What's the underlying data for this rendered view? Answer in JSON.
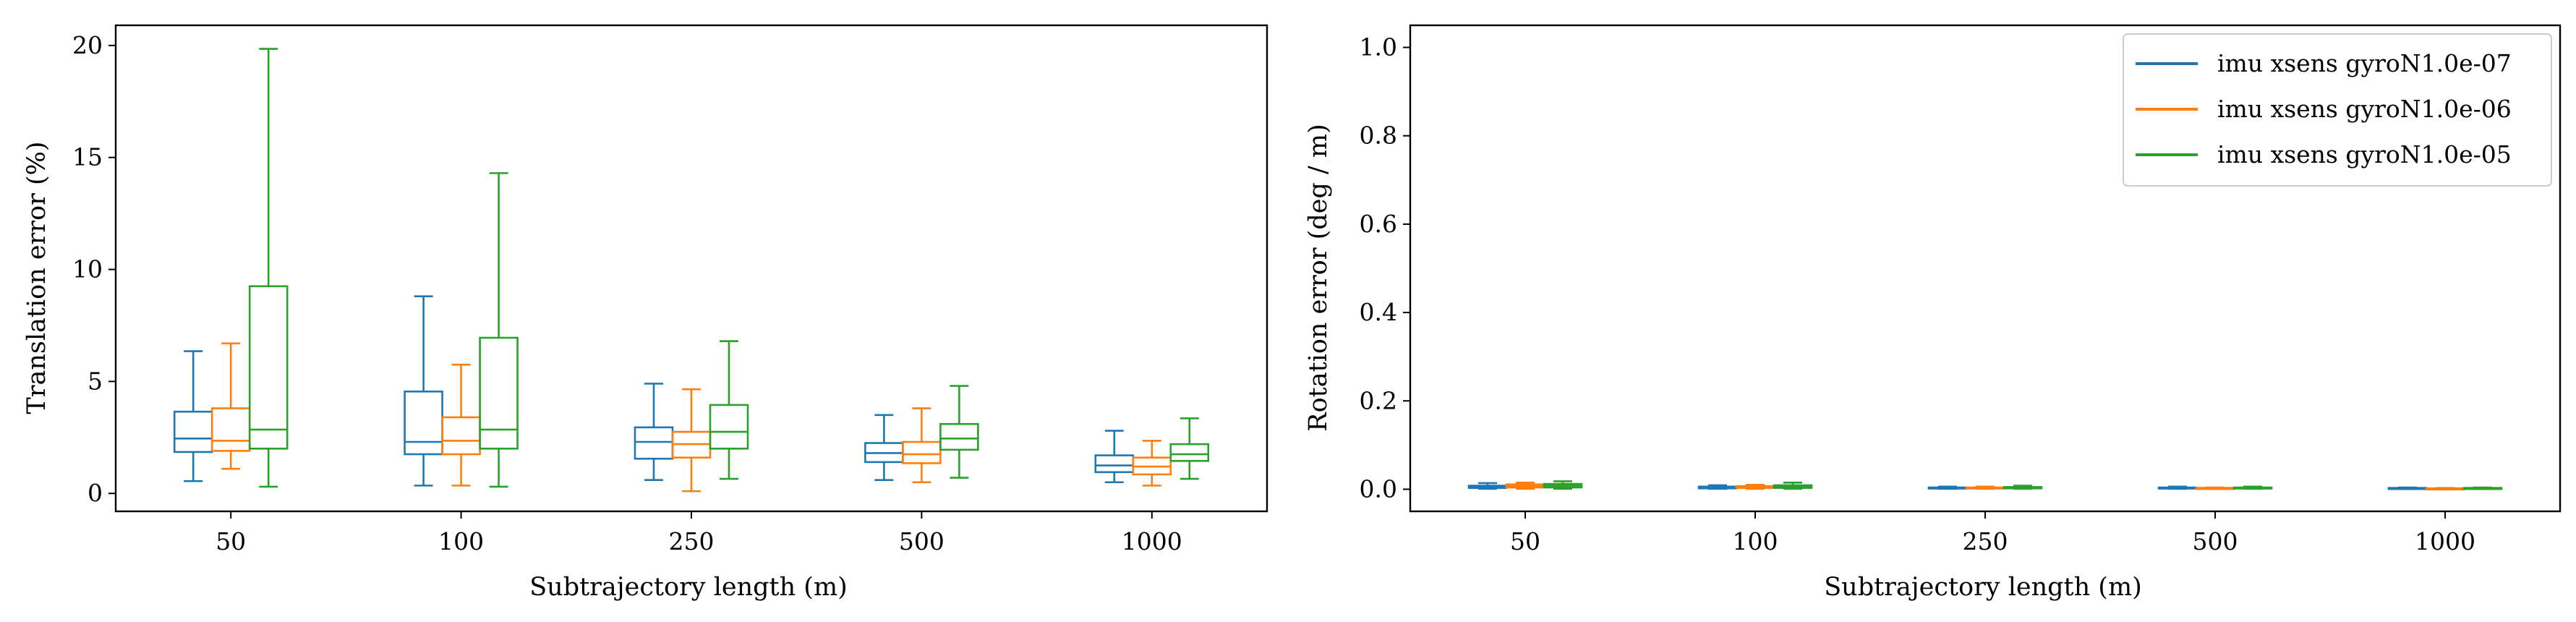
{
  "colors": {
    "series": [
      "#1f77b4",
      "#ff7f0e",
      "#2ca02c"
    ],
    "axes": "#000000",
    "legend_frame": "#cccccc"
  },
  "chart_data": [
    {
      "type": "box",
      "xlabel": "Subtrajectory length (m)",
      "ylabel": "Translation error (%)",
      "categories": [
        "50",
        "100",
        "250",
        "500",
        "1000"
      ],
      "ylim": [
        -0.8,
        20.9
      ],
      "yticks": [
        0,
        5,
        10,
        15,
        20
      ],
      "grid": false,
      "legend": null,
      "series": [
        {
          "name": "imu xsens gyroN1.0e-07",
          "boxes": [
            {
              "whislo": 0.55,
              "q1": 1.85,
              "med": 2.45,
              "q3": 3.65,
              "whishi": 6.35
            },
            {
              "whislo": 0.35,
              "q1": 1.75,
              "med": 2.3,
              "q3": 4.55,
              "whishi": 8.8
            },
            {
              "whislo": 0.6,
              "q1": 1.55,
              "med": 2.3,
              "q3": 2.95,
              "whishi": 4.9
            },
            {
              "whislo": 0.6,
              "q1": 1.4,
              "med": 1.8,
              "q3": 2.25,
              "whishi": 3.5
            },
            {
              "whislo": 0.5,
              "q1": 0.95,
              "med": 1.25,
              "q3": 1.7,
              "whishi": 2.8
            }
          ]
        },
        {
          "name": "imu xsens gyroN1.0e-06",
          "boxes": [
            {
              "whislo": 1.1,
              "q1": 1.9,
              "med": 2.35,
              "q3": 3.8,
              "whishi": 6.7
            },
            {
              "whislo": 0.35,
              "q1": 1.75,
              "med": 2.35,
              "q3": 3.4,
              "whishi": 5.75
            },
            {
              "whislo": 0.1,
              "q1": 1.6,
              "med": 2.2,
              "q3": 2.75,
              "whishi": 4.65
            },
            {
              "whislo": 0.5,
              "q1": 1.35,
              "med": 1.75,
              "q3": 2.3,
              "whishi": 3.8
            },
            {
              "whislo": 0.35,
              "q1": 0.85,
              "med": 1.2,
              "q3": 1.6,
              "whishi": 2.35
            }
          ]
        },
        {
          "name": "imu xsens gyroN1.0e-05",
          "boxes": [
            {
              "whislo": 0.3,
              "q1": 2.0,
              "med": 2.85,
              "q3": 9.25,
              "whishi": 19.85
            },
            {
              "whislo": 0.3,
              "q1": 2.0,
              "med": 2.85,
              "q3": 6.95,
              "whishi": 14.3
            },
            {
              "whislo": 0.65,
              "q1": 2.0,
              "med": 2.75,
              "q3": 3.95,
              "whishi": 6.8
            },
            {
              "whislo": 0.7,
              "q1": 1.95,
              "med": 2.45,
              "q3": 3.1,
              "whishi": 4.8
            },
            {
              "whislo": 0.65,
              "q1": 1.45,
              "med": 1.75,
              "q3": 2.2,
              "whishi": 3.35
            }
          ]
        }
      ]
    },
    {
      "type": "box",
      "xlabel": "Subtrajectory length (m)",
      "ylabel": "Rotation error (deg / m)",
      "categories": [
        "50",
        "100",
        "250",
        "500",
        "1000"
      ],
      "ylim": [
        -0.05,
        1.05
      ],
      "yticks": [
        "0.0",
        "0.2",
        "0.4",
        "0.6",
        "0.8",
        "1.0"
      ],
      "grid": false,
      "legend": "top-right",
      "series": [
        {
          "name": "imu xsens gyroN1.0e-07",
          "boxes": [
            {
              "whislo": 0.001,
              "q1": 0.003,
              "med": 0.005,
              "q3": 0.008,
              "whishi": 0.014
            },
            {
              "whislo": 0.001,
              "q1": 0.002,
              "med": 0.004,
              "q3": 0.006,
              "whishi": 0.009
            },
            {
              "whislo": 0.001,
              "q1": 0.002,
              "med": 0.003,
              "q3": 0.004,
              "whishi": 0.006
            },
            {
              "whislo": 0.001,
              "q1": 0.002,
              "med": 0.003,
              "q3": 0.004,
              "whishi": 0.006
            },
            {
              "whislo": 0.0005,
              "q1": 0.001,
              "med": 0.002,
              "q3": 0.003,
              "whishi": 0.004
            }
          ]
        },
        {
          "name": "imu xsens gyroN1.0e-06",
          "boxes": [
            {
              "whislo": 0.001,
              "q1": 0.004,
              "med": 0.007,
              "q3": 0.011,
              "whishi": 0.015
            },
            {
              "whislo": 0.001,
              "q1": 0.003,
              "med": 0.005,
              "q3": 0.007,
              "whishi": 0.01
            },
            {
              "whislo": 0.001,
              "q1": 0.002,
              "med": 0.003,
              "q3": 0.004,
              "whishi": 0.006
            },
            {
              "whislo": 0.001,
              "q1": 0.002,
              "med": 0.003,
              "q3": 0.003,
              "whishi": 0.004
            },
            {
              "whislo": 0.0005,
              "q1": 0.001,
              "med": 0.002,
              "q3": 0.002,
              "whishi": 0.003
            }
          ]
        },
        {
          "name": "imu xsens gyroN1.0e-05",
          "boxes": [
            {
              "whislo": 0.001,
              "q1": 0.004,
              "med": 0.008,
              "q3": 0.012,
              "whishi": 0.018
            },
            {
              "whislo": 0.001,
              "q1": 0.003,
              "med": 0.006,
              "q3": 0.009,
              "whishi": 0.015
            },
            {
              "whislo": 0.001,
              "q1": 0.002,
              "med": 0.004,
              "q3": 0.005,
              "whishi": 0.008
            },
            {
              "whislo": 0.001,
              "q1": 0.002,
              "med": 0.003,
              "q3": 0.004,
              "whishi": 0.006
            },
            {
              "whislo": 0.0005,
              "q1": 0.001,
              "med": 0.002,
              "q3": 0.003,
              "whishi": 0.004
            }
          ]
        }
      ]
    }
  ]
}
